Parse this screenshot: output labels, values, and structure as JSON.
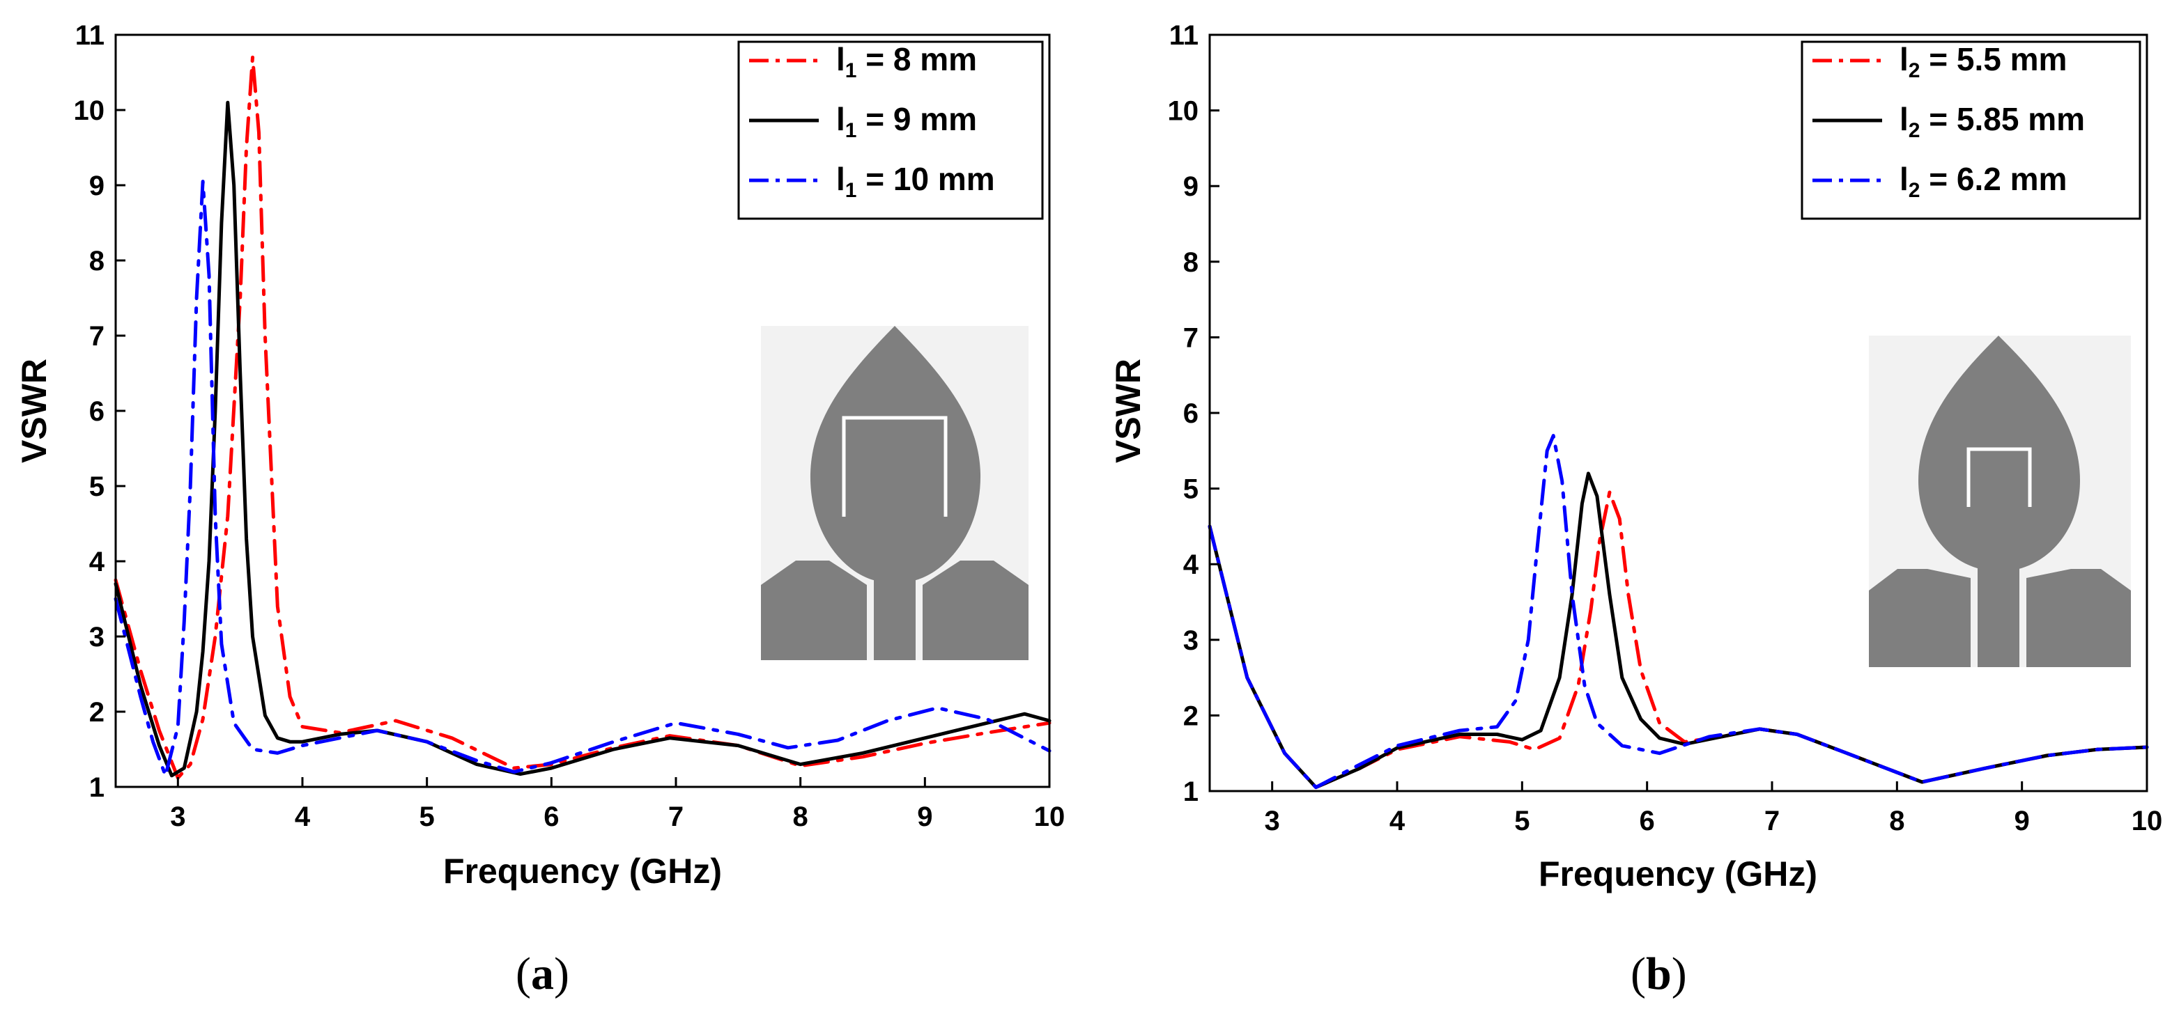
{
  "chart_data": [
    {
      "type": "line",
      "caption_letter": "a",
      "title": "",
      "xlabel": "Frequency (GHz)",
      "ylabel": "VSWR",
      "xlim": [
        2.5,
        10
      ],
      "ylim": [
        1,
        11
      ],
      "xticks": [
        "3",
        "4",
        "5",
        "6",
        "7",
        "8",
        "9",
        "10"
      ],
      "yticks": [
        "1",
        "2",
        "3",
        "4",
        "5",
        "6",
        "7",
        "8",
        "9",
        "10",
        "11"
      ],
      "legend_position": "top-right",
      "inset": "antenna-structure",
      "series": [
        {
          "name_main": "l",
          "name_sub": "1",
          "name_value": " = 8 mm",
          "color": "#ff0000",
          "dash": "dashdot",
          "x": [
            2.5,
            2.7,
            2.85,
            3.0,
            3.1,
            3.2,
            3.3,
            3.4,
            3.5,
            3.55,
            3.6,
            3.65,
            3.7,
            3.8,
            3.9,
            4.0,
            4.3,
            4.75,
            5.2,
            5.7,
            6.0,
            6.5,
            6.95,
            7.5,
            8.0,
            8.5,
            9.0,
            9.5,
            10.0
          ],
          "y": [
            3.75,
            2.55,
            1.75,
            1.12,
            1.3,
            1.9,
            3.0,
            4.6,
            7.5,
            9.5,
            10.7,
            9.7,
            7.0,
            3.4,
            2.2,
            1.8,
            1.72,
            1.88,
            1.65,
            1.25,
            1.3,
            1.52,
            1.68,
            1.55,
            1.28,
            1.4,
            1.58,
            1.72,
            1.85
          ]
        },
        {
          "name_main": "l",
          "name_sub": "1",
          "name_value": " = 9 mm",
          "color": "#000000",
          "dash": "solid",
          "x": [
            2.5,
            2.7,
            2.85,
            2.95,
            3.05,
            3.15,
            3.2,
            3.25,
            3.3,
            3.35,
            3.4,
            3.45,
            3.5,
            3.55,
            3.6,
            3.7,
            3.8,
            3.9,
            4.0,
            4.3,
            4.6,
            5.0,
            5.4,
            5.75,
            6.0,
            6.5,
            6.95,
            7.5,
            8.0,
            8.5,
            9.0,
            9.5,
            9.8,
            10.0
          ],
          "y": [
            3.7,
            2.35,
            1.55,
            1.15,
            1.25,
            2.0,
            2.8,
            4.0,
            6.0,
            8.5,
            10.1,
            9.0,
            6.5,
            4.3,
            3.0,
            1.95,
            1.65,
            1.6,
            1.6,
            1.7,
            1.75,
            1.6,
            1.3,
            1.17,
            1.25,
            1.5,
            1.65,
            1.55,
            1.3,
            1.45,
            1.65,
            1.85,
            1.97,
            1.88
          ]
        },
        {
          "name_main": "l",
          "name_sub": "1",
          "name_value": " = 10 mm",
          "color": "#0000ff",
          "dash": "dashdot",
          "x": [
            2.5,
            2.7,
            2.8,
            2.9,
            3.0,
            3.05,
            3.1,
            3.15,
            3.2,
            3.25,
            3.3,
            3.35,
            3.45,
            3.6,
            3.8,
            4.0,
            4.3,
            4.6,
            5.0,
            5.4,
            5.7,
            6.0,
            6.5,
            7.0,
            7.5,
            7.9,
            8.3,
            8.7,
            9.1,
            9.5,
            10.0
          ],
          "y": [
            3.5,
            2.2,
            1.6,
            1.15,
            1.8,
            3.2,
            5.0,
            7.5,
            9.05,
            7.8,
            4.6,
            2.9,
            1.85,
            1.5,
            1.45,
            1.55,
            1.65,
            1.75,
            1.6,
            1.35,
            1.2,
            1.32,
            1.6,
            1.85,
            1.7,
            1.52,
            1.62,
            1.88,
            2.05,
            1.9,
            1.48
          ]
        }
      ]
    },
    {
      "type": "line",
      "caption_letter": "b",
      "title": "",
      "xlabel": "Frequency (GHz)",
      "ylabel": "VSWR",
      "xlim": [
        2.5,
        10
      ],
      "ylim": [
        1,
        11
      ],
      "xticks": [
        "3",
        "4",
        "5",
        "6",
        "7",
        "8",
        "9",
        "10"
      ],
      "yticks": [
        "1",
        "2",
        "3",
        "4",
        "5",
        "6",
        "7",
        "8",
        "9",
        "10",
        "11"
      ],
      "legend_position": "top-right",
      "inset": "antenna-structure",
      "series": [
        {
          "name_main": "l",
          "name_sub": "2",
          "name_value": " = 5.5 mm",
          "color": "#ff0000",
          "dash": "dashdot",
          "x": [
            2.5,
            2.8,
            3.1,
            3.35,
            3.7,
            4.0,
            4.5,
            4.9,
            5.1,
            5.3,
            5.45,
            5.55,
            5.62,
            5.7,
            5.78,
            5.85,
            5.95,
            6.1,
            6.3,
            6.6,
            6.9,
            7.2,
            7.6,
            8.2,
            8.7,
            9.2,
            9.6,
            10.0
          ],
          "y": [
            4.5,
            2.5,
            1.5,
            1.05,
            1.3,
            1.55,
            1.72,
            1.65,
            1.55,
            1.7,
            2.4,
            3.4,
            4.3,
            4.95,
            4.6,
            3.6,
            2.6,
            1.9,
            1.65,
            1.72,
            1.82,
            1.75,
            1.5,
            1.12,
            1.3,
            1.47,
            1.55,
            1.58
          ]
        },
        {
          "name_main": "l",
          "name_sub": "2",
          "name_value": " = 5.85 mm",
          "color": "#000000",
          "dash": "solid",
          "x": [
            2.5,
            2.8,
            3.1,
            3.35,
            3.7,
            4.0,
            4.5,
            4.8,
            5.0,
            5.15,
            5.3,
            5.4,
            5.48,
            5.53,
            5.6,
            5.7,
            5.8,
            5.95,
            6.1,
            6.3,
            6.6,
            6.9,
            7.2,
            7.6,
            8.2,
            8.7,
            9.2,
            9.6,
            10.0
          ],
          "y": [
            4.5,
            2.5,
            1.5,
            1.05,
            1.3,
            1.57,
            1.75,
            1.75,
            1.68,
            1.8,
            2.5,
            3.6,
            4.8,
            5.2,
            4.9,
            3.6,
            2.5,
            1.95,
            1.7,
            1.62,
            1.72,
            1.82,
            1.75,
            1.5,
            1.12,
            1.3,
            1.47,
            1.55,
            1.58
          ]
        },
        {
          "name_main": "l",
          "name_sub": "2",
          "name_value": " = 6.2 mm",
          "color": "#0000ff",
          "dash": "dashdot",
          "x": [
            2.5,
            2.8,
            3.1,
            3.35,
            3.7,
            4.0,
            4.5,
            4.8,
            4.95,
            5.05,
            5.12,
            5.2,
            5.25,
            5.32,
            5.4,
            5.5,
            5.6,
            5.8,
            6.1,
            6.5,
            6.9,
            7.2,
            7.6,
            8.2,
            8.7,
            9.2,
            9.6,
            10.0
          ],
          "y": [
            4.5,
            2.5,
            1.5,
            1.05,
            1.35,
            1.6,
            1.8,
            1.85,
            2.2,
            3.0,
            4.2,
            5.5,
            5.7,
            5.1,
            3.6,
            2.4,
            1.9,
            1.6,
            1.5,
            1.72,
            1.82,
            1.75,
            1.5,
            1.12,
            1.3,
            1.47,
            1.55,
            1.58
          ]
        }
      ]
    }
  ]
}
